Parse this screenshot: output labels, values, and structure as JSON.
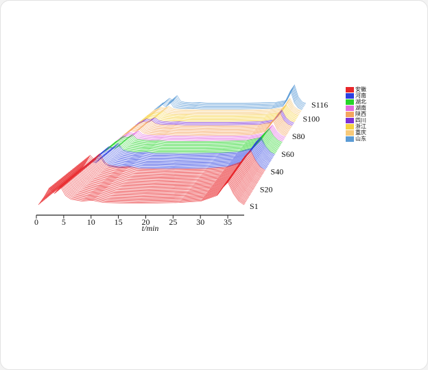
{
  "chart_data": {
    "type": "waterfall",
    "x_label": "t/min",
    "xlim": [
      0,
      38
    ],
    "xticks": [
      0,
      5,
      10,
      15,
      20,
      25,
      30,
      35
    ],
    "zlim": [
      1,
      116
    ],
    "zticks": [
      {
        "value": 1,
        "label": "S1"
      },
      {
        "value": 20,
        "label": "S20"
      },
      {
        "value": 40,
        "label": "S40"
      },
      {
        "value": 60,
        "label": "S60"
      },
      {
        "value": 80,
        "label": "S80"
      },
      {
        "value": 100,
        "label": "S100"
      },
      {
        "value": 116,
        "label": "S116"
      }
    ],
    "x": [
      0,
      1,
      2,
      3,
      4,
      5,
      6,
      8,
      10,
      12,
      15,
      18,
      22,
      26,
      30,
      33,
      34,
      35,
      36,
      37,
      38
    ],
    "series": [
      {
        "name": "安徽",
        "color": "#e8262a",
        "samples": 40,
        "values": [
          0,
          20,
          45,
          30,
          50,
          25,
          15,
          10,
          12,
          6,
          5,
          4,
          5,
          6,
          10,
          25,
          45,
          60,
          30,
          10,
          0
        ]
      },
      {
        "name": "河南",
        "color": "#2b3fe0",
        "samples": 18,
        "values": [
          0,
          10,
          25,
          20,
          35,
          15,
          10,
          6,
          8,
          4,
          4,
          3,
          4,
          5,
          8,
          20,
          40,
          55,
          25,
          8,
          0
        ]
      },
      {
        "name": "湖北",
        "color": "#27d42a",
        "samples": 14,
        "values": [
          0,
          8,
          20,
          15,
          25,
          10,
          8,
          5,
          6,
          3,
          3,
          3,
          3,
          4,
          6,
          15,
          30,
          45,
          20,
          6,
          0
        ]
      },
      {
        "name": "湖南",
        "color": "#e36be0",
        "samples": 6,
        "values": [
          0,
          6,
          15,
          12,
          20,
          8,
          6,
          4,
          5,
          3,
          3,
          2,
          3,
          3,
          5,
          12,
          25,
          40,
          18,
          5,
          0
        ]
      },
      {
        "name": "陕西",
        "color": "#f4a460",
        "samples": 12,
        "values": [
          0,
          8,
          18,
          14,
          22,
          10,
          6,
          4,
          5,
          3,
          3,
          2,
          3,
          3,
          5,
          14,
          30,
          50,
          20,
          6,
          0
        ]
      },
      {
        "name": "四川",
        "color": "#7b2fd8",
        "samples": 4,
        "values": [
          0,
          6,
          14,
          10,
          18,
          8,
          5,
          3,
          4,
          2,
          2,
          2,
          2,
          3,
          4,
          10,
          25,
          45,
          18,
          5,
          0
        ]
      },
      {
        "name": "浙江",
        "color": "#f5d142",
        "samples": 8,
        "values": [
          0,
          6,
          12,
          10,
          16,
          7,
          5,
          3,
          4,
          2,
          2,
          2,
          2,
          3,
          4,
          10,
          20,
          40,
          16,
          5,
          0
        ]
      },
      {
        "name": "重庆",
        "color": "#f7c97a",
        "samples": 6,
        "values": [
          0,
          5,
          12,
          9,
          15,
          6,
          4,
          3,
          3,
          2,
          2,
          2,
          2,
          2,
          4,
          9,
          22,
          45,
          15,
          4,
          0
        ]
      },
      {
        "name": "山东",
        "color": "#5b9bd5",
        "samples": 8,
        "values": [
          0,
          6,
          20,
          10,
          30,
          8,
          5,
          3,
          4,
          2,
          2,
          2,
          2,
          3,
          4,
          12,
          40,
          70,
          25,
          6,
          0
        ]
      }
    ]
  }
}
